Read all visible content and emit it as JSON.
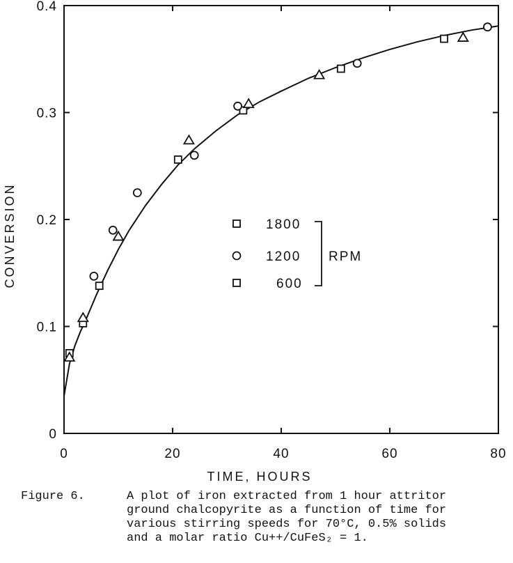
{
  "chart_data": {
    "type": "scatter",
    "title": "",
    "xlabel": "TIME, HOURS",
    "ylabel": "CONVERSION",
    "xlim": [
      0,
      80
    ],
    "ylim": [
      0,
      0.4
    ],
    "xticks": [
      "0",
      "20",
      "40",
      "60",
      "80"
    ],
    "yticks": [
      "0",
      "0.1",
      "0.2",
      "0.3",
      "0.4"
    ],
    "grid": false,
    "legend": {
      "placement": "center",
      "entries": [
        "1800",
        "1200",
        "600"
      ],
      "group_label": "RPM"
    },
    "series": [
      {
        "name": "1800",
        "marker": "square",
        "x": [
          1,
          3.5,
          6.5,
          21,
          33,
          51,
          70
        ],
        "y": [
          0.075,
          0.103,
          0.138,
          0.256,
          0.302,
          0.341,
          0.369
        ]
      },
      {
        "name": "1200",
        "marker": "circle",
        "x": [
          5.5,
          9,
          13.5,
          24,
          32,
          54,
          78
        ],
        "y": [
          0.147,
          0.19,
          0.225,
          0.26,
          0.306,
          0.346,
          0.38
        ]
      },
      {
        "name": "600",
        "marker": "triangle",
        "x": [
          1,
          3.5,
          10,
          23,
          34,
          47,
          73.5
        ],
        "y": [
          0.071,
          0.108,
          0.184,
          0.274,
          0.308,
          0.335,
          0.37
        ]
      }
    ],
    "fit_curve": {
      "x": [
        0,
        1,
        2,
        3,
        4,
        5,
        6,
        8,
        10,
        12,
        15,
        18,
        21,
        24,
        28,
        32,
        36,
        40,
        45,
        50,
        55,
        60,
        65,
        70,
        75,
        80
      ],
      "y": [
        0.035,
        0.065,
        0.082,
        0.095,
        0.106,
        0.118,
        0.13,
        0.152,
        0.172,
        0.19,
        0.213,
        0.233,
        0.251,
        0.266,
        0.283,
        0.298,
        0.31,
        0.32,
        0.332,
        0.342,
        0.351,
        0.359,
        0.366,
        0.372,
        0.377,
        0.381
      ]
    }
  },
  "caption": {
    "lines": [
      {
        "lead": "Figure 6.",
        "text": "A plot of iron extracted from 1 hour attritor"
      },
      {
        "lead": "",
        "text": "ground chalcopyrite as a function of time for"
      },
      {
        "lead": "",
        "text": "various stirring speeds for 70°C, 0.5% solids"
      },
      {
        "lead": "",
        "text": "and a molar ratio Cu++/CuFeS₂ = 1."
      }
    ]
  }
}
